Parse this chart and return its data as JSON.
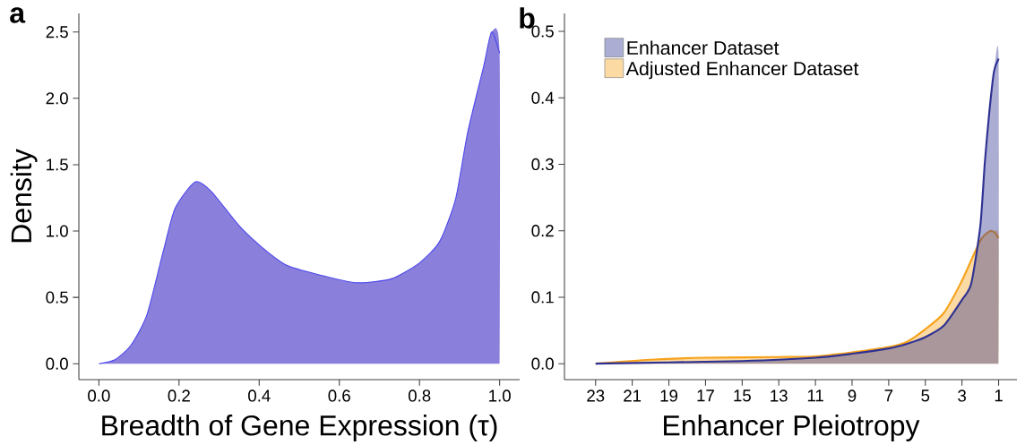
{
  "chart_data": [
    {
      "type": "area",
      "title": "a",
      "xlabel": "Breadth of Gene Expression (τ)",
      "ylabel": "Density",
      "xlim": [
        -0.05,
        1.05
      ],
      "ylim": [
        -0.12,
        2.64
      ],
      "xticks": [
        {
          "value": 0,
          "label": "0.0"
        },
        {
          "value": 0.2,
          "label": "0.2"
        },
        {
          "value": 0.4,
          "label": "0.4"
        },
        {
          "value": 0.6,
          "label": "0.6"
        },
        {
          "value": 0.8,
          "label": "0.8"
        },
        {
          "value": 1,
          "label": "1.0"
        }
      ],
      "yticks": [
        {
          "value": 0,
          "label": "0.0"
        },
        {
          "value": 0.5,
          "label": "0.5"
        },
        {
          "value": 1,
          "label": "1.0"
        },
        {
          "value": 1.5,
          "label": "1.5"
        },
        {
          "value": 2,
          "label": "2.0"
        },
        {
          "value": 2.5,
          "label": "2.5"
        }
      ],
      "series": [
        {
          "color": "#8a80dc",
          "x": [
            0,
            0.04,
            0.08,
            0.12,
            0.16,
            0.19,
            0.24,
            0.28,
            0.35,
            0.41,
            0.47,
            0.55,
            0.64,
            0.73,
            0.8,
            0.85,
            0.89,
            0.92,
            0.96,
            0.98,
            1.0
          ],
          "values": [
            0,
            0.03,
            0.14,
            0.37,
            0.84,
            1.17,
            1.37,
            1.3,
            1.04,
            0.87,
            0.74,
            0.67,
            0.61,
            0.64,
            0.76,
            0.92,
            1.24,
            1.74,
            2.24,
            2.5,
            2.34
          ]
        }
      ]
    },
    {
      "type": "area",
      "title": "b",
      "xlabel": "Enhancer Pleiotropy",
      "legend": "top left",
      "xlim": [
        24.7,
        0
      ],
      "ylim": [
        -0.024,
        0.527
      ],
      "xticks": [
        23,
        21,
        19,
        17,
        15,
        13,
        11,
        9,
        7,
        5,
        3,
        1
      ],
      "yticks": [
        {
          "value": 0,
          "label": "0.0"
        },
        {
          "value": 0.1,
          "label": "0.1"
        },
        {
          "value": 0.2,
          "label": "0.2"
        },
        {
          "value": 0.3,
          "label": "0.3"
        },
        {
          "value": 0.4,
          "label": "0.4"
        },
        {
          "value": 0.5,
          "label": "0.5"
        }
      ],
      "series": [
        {
          "name": "Adjusted Enhancer Dataset",
          "color": "#f7a21b",
          "x": [
            23,
            20,
            17,
            13,
            11,
            9,
            7,
            6,
            5,
            4,
            3,
            2,
            1.5,
            1.25,
            1
          ],
          "values": [
            0,
            0.006,
            0.009,
            0.01,
            0.011,
            0.017,
            0.025,
            0.033,
            0.052,
            0.076,
            0.125,
            0.185,
            0.199,
            0.198,
            0.189
          ]
        },
        {
          "name": "Enhancer Dataset",
          "color": "#2e3192",
          "x": [
            23,
            19,
            15,
            11,
            9,
            7,
            6,
            5,
            4,
            3,
            2.5,
            2,
            1.75,
            1.5,
            1.25,
            1
          ],
          "values": [
            0,
            0.002,
            0.004,
            0.009,
            0.015,
            0.023,
            0.03,
            0.04,
            0.057,
            0.096,
            0.12,
            0.207,
            0.304,
            0.381,
            0.44,
            0.459
          ]
        }
      ]
    }
  ]
}
